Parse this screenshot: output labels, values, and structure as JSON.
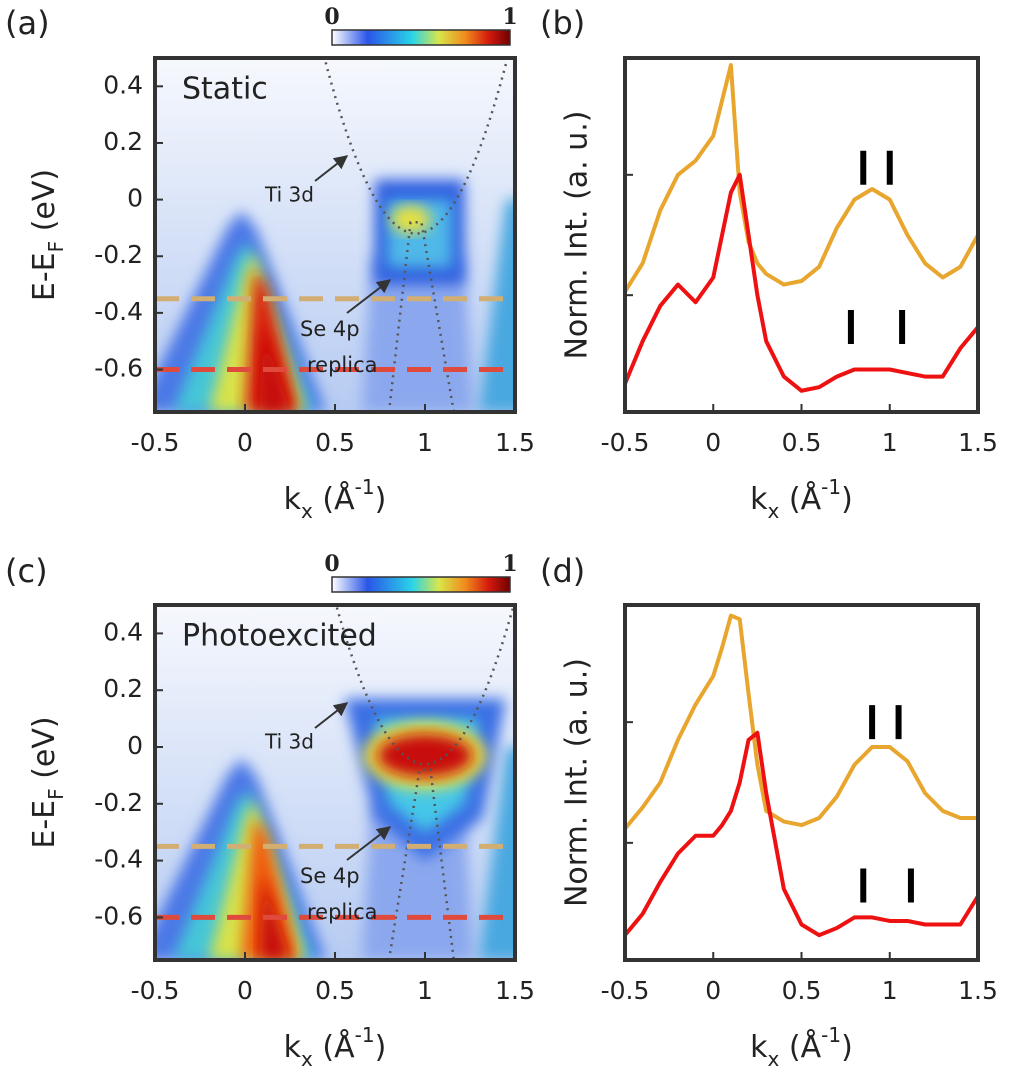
{
  "chart_data": [
    {
      "type": "heatmap",
      "panel_label": "(a)",
      "annotation": "Static",
      "band_label": "Ti 3d",
      "replica_label": [
        "Se 4p",
        "replica"
      ],
      "xlabel_parts": [
        "k",
        "x",
        " (Å",
        "-1",
        ")"
      ],
      "ylabel_parts": [
        "E-E",
        "F",
        " (eV)"
      ],
      "xlim": [
        -0.5,
        1.5
      ],
      "xticks": [
        -0.5,
        0,
        0.5,
        1,
        1.5
      ],
      "ylim": [
        -0.75,
        0.5
      ],
      "yticks": [
        0.4,
        0.2,
        0,
        -0.2,
        -0.4,
        -0.6
      ],
      "colorbar_ticks": [
        0,
        1
      ],
      "cuts": [
        {
          "value": -0.35,
          "color": "#d2ae72"
        },
        {
          "value": -0.6,
          "color": "#e04a3c"
        }
      ]
    },
    {
      "type": "line",
      "panel_label": "(b)",
      "ylabel": "Norm. Int. (a. u.)",
      "xlabel_parts": [
        "k",
        "x",
        " (Å",
        "-1",
        ")"
      ],
      "xlim": [
        -0.5,
        1.5
      ],
      "xticks": [
        -0.5,
        0,
        0.5,
        1,
        1.5
      ],
      "ylim": [
        0,
        1
      ],
      "yticks": [
        0.33,
        0.67
      ],
      "x": [
        -0.5,
        -0.4,
        -0.3,
        -0.2,
        -0.1,
        0,
        0.05,
        0.1,
        0.15,
        0.2,
        0.25,
        0.3,
        0.4,
        0.5,
        0.6,
        0.7,
        0.8,
        0.9,
        1,
        1.1,
        1.2,
        1.3,
        1.4,
        1.5
      ],
      "series": [
        {
          "color": "#e8a62e",
          "values": [
            0.34,
            0.42,
            0.57,
            0.67,
            0.71,
            0.78,
            0.88,
            0.98,
            0.62,
            0.48,
            0.42,
            0.39,
            0.36,
            0.37,
            0.41,
            0.52,
            0.6,
            0.63,
            0.6,
            0.5,
            0.42,
            0.38,
            0.41,
            0.5
          ]
        },
        {
          "color": "#ee1111",
          "values": [
            0.08,
            0.2,
            0.3,
            0.36,
            0.31,
            0.38,
            0.5,
            0.62,
            0.67,
            0.5,
            0.33,
            0.2,
            0.1,
            0.06,
            0.07,
            0.1,
            0.12,
            0.12,
            0.12,
            0.11,
            0.1,
            0.1,
            0.18,
            0.24
          ]
        }
      ],
      "peak_marks": [
        {
          "x": [
            0.85,
            1.0
          ],
          "y": 0.69
        },
        {
          "x": [
            0.78,
            1.07
          ],
          "y": 0.24
        }
      ]
    },
    {
      "type": "heatmap",
      "panel_label": "(c)",
      "annotation": "Photoexcited",
      "band_label": "Ti 3d",
      "replica_label": [
        "Se 4p",
        "replica"
      ],
      "xlabel_parts": [
        "k",
        "x",
        " (Å",
        "-1",
        ")"
      ],
      "ylabel_parts": [
        "E-E",
        "F",
        " (eV)"
      ],
      "xlim": [
        -0.5,
        1.5
      ],
      "xticks": [
        -0.5,
        0,
        0.5,
        1,
        1.5
      ],
      "ylim": [
        -0.75,
        0.5
      ],
      "yticks": [
        0.4,
        0.2,
        0,
        -0.2,
        -0.4,
        -0.6
      ],
      "colorbar_ticks": [
        0,
        1
      ],
      "cuts": [
        {
          "value": -0.35,
          "color": "#d2ae72"
        },
        {
          "value": -0.6,
          "color": "#e04a3c"
        }
      ]
    },
    {
      "type": "line",
      "panel_label": "(d)",
      "ylabel": "Norm. Int. (a. u.)",
      "xlabel_parts": [
        "k",
        "x",
        " (Å",
        "-1",
        ")"
      ],
      "xlim": [
        -0.5,
        1.5
      ],
      "xticks": [
        -0.5,
        0,
        0.5,
        1,
        1.5
      ],
      "ylim": [
        0,
        1
      ],
      "yticks": [
        0.33,
        0.67
      ],
      "x": [
        -0.5,
        -0.4,
        -0.3,
        -0.2,
        -0.1,
        0,
        0.05,
        0.1,
        0.15,
        0.2,
        0.25,
        0.3,
        0.4,
        0.5,
        0.6,
        0.7,
        0.8,
        0.9,
        1,
        1.1,
        1.2,
        1.3,
        1.4,
        1.5
      ],
      "series": [
        {
          "color": "#e8a62e",
          "values": [
            0.37,
            0.43,
            0.5,
            0.62,
            0.72,
            0.8,
            0.88,
            0.97,
            0.96,
            0.75,
            0.55,
            0.42,
            0.39,
            0.38,
            0.4,
            0.46,
            0.55,
            0.6,
            0.6,
            0.56,
            0.47,
            0.42,
            0.4,
            0.4
          ]
        },
        {
          "color": "#ee1111",
          "values": [
            0.07,
            0.13,
            0.22,
            0.3,
            0.35,
            0.35,
            0.38,
            0.42,
            0.5,
            0.62,
            0.64,
            0.47,
            0.2,
            0.1,
            0.07,
            0.09,
            0.12,
            0.12,
            0.11,
            0.11,
            0.1,
            0.1,
            0.1,
            0.18
          ]
        }
      ],
      "peak_marks": [
        {
          "x": [
            0.9,
            1.05
          ],
          "y": 0.67
        },
        {
          "x": [
            0.85,
            1.12
          ],
          "y": 0.21
        }
      ]
    }
  ]
}
